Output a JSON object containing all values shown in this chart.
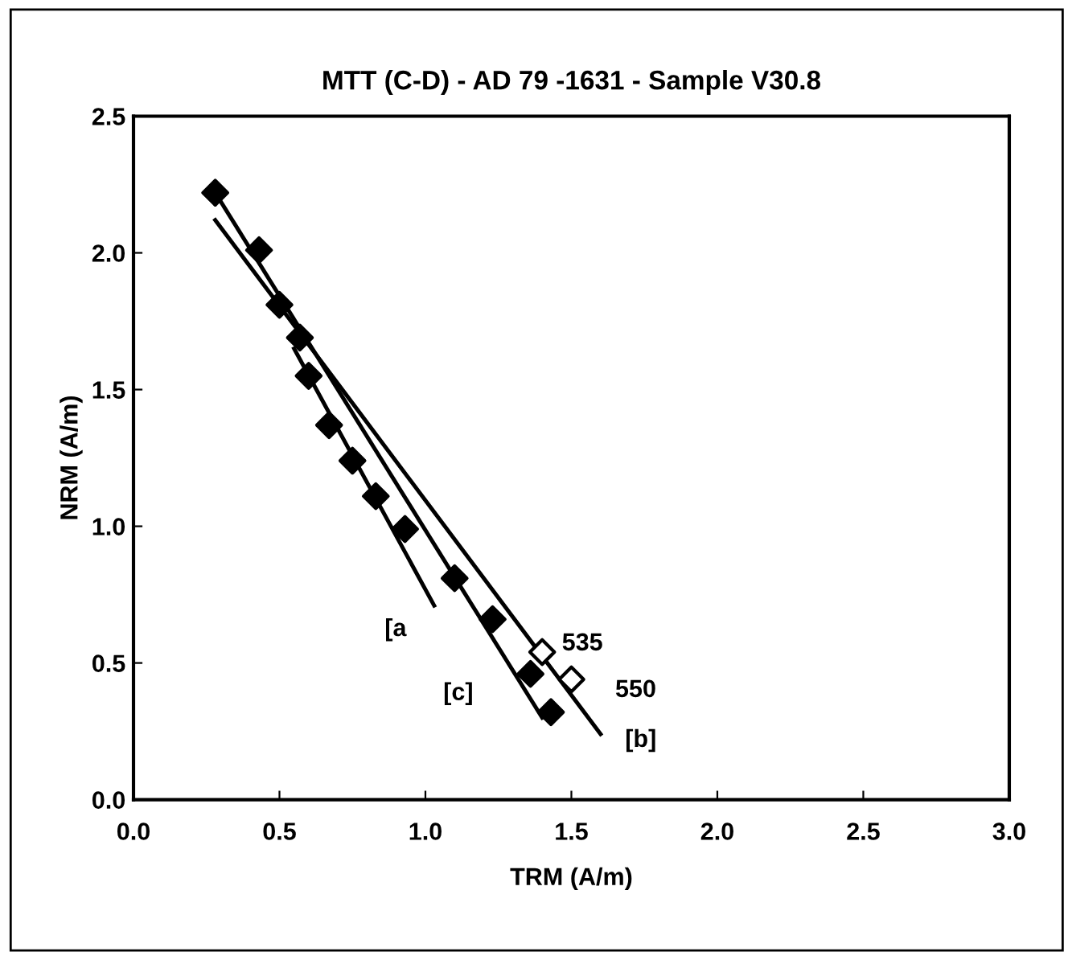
{
  "chart_data": {
    "type": "scatter",
    "title": "MTT (C-D) - AD 79 -1631 - Sample V30.8",
    "xlabel": "TRM (A/m)",
    "ylabel": "NRM (A/m)",
    "xlim": [
      0,
      3
    ],
    "xticks": [
      {
        "value": 0,
        "label": "0.0"
      },
      {
        "value": 0.5,
        "label": "0.5"
      },
      {
        "value": 1,
        "label": "1.0"
      },
      {
        "value": 1.5,
        "label": "1.5"
      },
      {
        "value": 2,
        "label": "2.0"
      },
      {
        "value": 2.5,
        "label": "2.5"
      },
      {
        "value": 3,
        "label": "3.0"
      }
    ],
    "ylim": [
      0,
      2.5
    ],
    "yticks": [
      {
        "value": 0,
        "label": "0.0"
      },
      {
        "value": 0.5,
        "label": "0.5"
      },
      {
        "value": 1,
        "label": "1.0"
      },
      {
        "value": 1.5,
        "label": "1.5"
      },
      {
        "value": 2,
        "label": "2.0"
      },
      {
        "value": 2.5,
        "label": "2.5"
      }
    ],
    "grid": false,
    "legend": false,
    "series": [
      {
        "marker": "diamond",
        "color": "#000000",
        "x": [
          0.28,
          0.43,
          0.5,
          0.57,
          0.6,
          0.67,
          0.75,
          0.83,
          0.93,
          1.1,
          1.23,
          1.36,
          1.43
        ],
        "values": [
          2.22,
          2.01,
          1.81,
          1.69,
          1.55,
          1.37,
          1.24,
          1.11,
          0.99,
          0.81,
          0.66,
          0.46,
          0.32
        ]
      },
      {
        "marker": "diamond",
        "color": "#ffffff",
        "x": [
          1.4,
          1.5
        ],
        "values": [
          0.54,
          0.44
        ]
      },
      {
        "type": "line",
        "marker": "none",
        "color": "#000000",
        "x": [
          0.55,
          1.03
        ],
        "values": [
          1.65,
          0.71
        ]
      },
      {
        "type": "line",
        "marker": "none",
        "color": "#000000",
        "x": [
          0.28,
          1.6
        ],
        "values": [
          2.12,
          0.24
        ]
      },
      {
        "type": "line",
        "marker": "none",
        "color": "#000000",
        "x": [
          0.28,
          1.4
        ],
        "values": [
          2.22,
          0.3
        ]
      }
    ],
    "annotations": [
      {
        "text": "[a",
        "x": 1.03,
        "y": 0.71
      },
      {
        "text": "[c]",
        "x": 1.3,
        "y": 0.47
      },
      {
        "text": "[b]",
        "x": 1.6,
        "y": 0.24
      },
      {
        "text": "535",
        "x": 1.4,
        "y": 0.54
      },
      {
        "text": "550",
        "x": 1.5,
        "y": 0.44
      }
    ]
  }
}
